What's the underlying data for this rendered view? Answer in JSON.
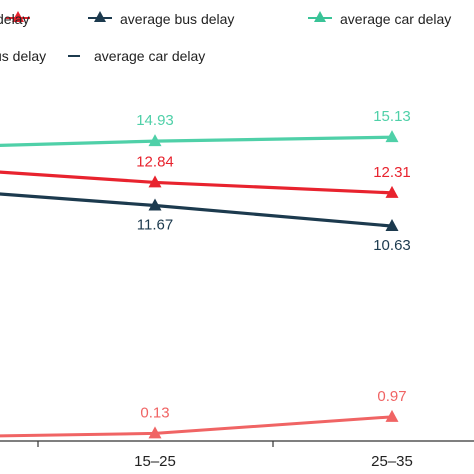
{
  "chart_data": {
    "type": "line",
    "categories": [
      "",
      "15–25",
      "25–35"
    ],
    "ylim": [
      0,
      16
    ],
    "title": "",
    "xlabel": "",
    "ylabel": "",
    "grid": false,
    "legend": {
      "placement": "top",
      "row1": [
        {
          "text": "delay",
          "marker": "triangle",
          "color": "#e8232e"
        },
        {
          "text": "average bus delay",
          "marker": "triangle",
          "color": "#1c3a4e"
        },
        {
          "text": "average car delay",
          "marker": "triangle",
          "color": "#39c397"
        }
      ],
      "row2": [
        {
          "text": "us delay",
          "marker": "dash",
          "color": "#1c3a4e"
        },
        {
          "text": "average car delay",
          "marker": "dash",
          "color": "#1c3a4e"
        }
      ]
    },
    "series": [
      {
        "name": "average car delay",
        "color": "#4fd0a8",
        "values": [
          14.7,
          14.93,
          15.13
        ],
        "labels": [
          "",
          "14.93",
          "15.13"
        ]
      },
      {
        "name": "",
        "color": "#e8232e",
        "values": [
          13.4,
          12.84,
          12.31
        ],
        "labels": [
          "",
          "12.84",
          "12.31"
        ]
      },
      {
        "name": "average bus delay",
        "color": "#1c3a4e",
        "values": [
          12.3,
          11.67,
          10.63
        ],
        "labels": [
          "",
          "11.67",
          "10.63"
        ]
      },
      {
        "name": "",
        "color": "#f06464",
        "values": [
          0.0,
          0.13,
          0.97
        ],
        "labels": [
          "",
          "0.13",
          "0.97"
        ]
      }
    ]
  }
}
